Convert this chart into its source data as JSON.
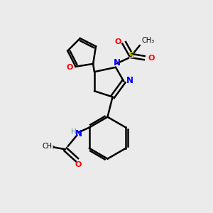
{
  "background_color": "#ebebeb",
  "bond_color": "#000000",
  "atom_colors": {
    "O": "#ff0000",
    "N": "#0000ff",
    "S": "#cccc00",
    "C": "#000000",
    "H": "#4a9090"
  },
  "figsize": [
    3.0,
    3.0
  ],
  "dpi": 100
}
